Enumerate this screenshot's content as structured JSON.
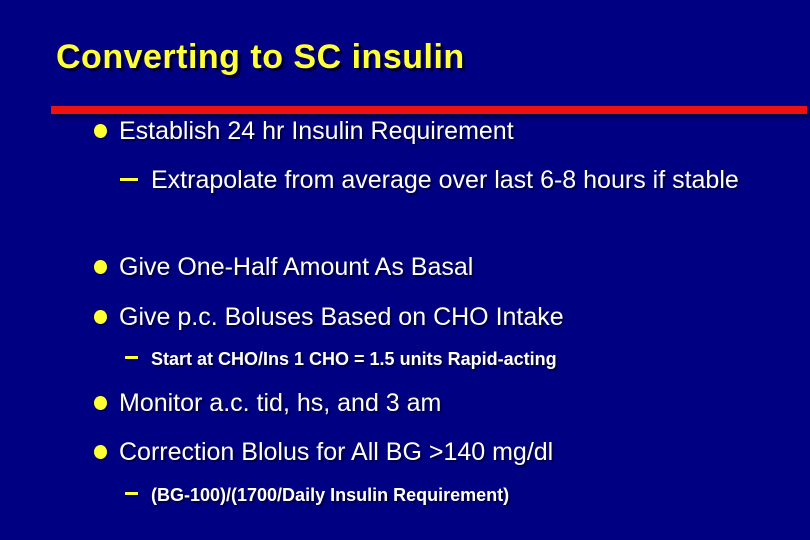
{
  "slide": {
    "title": "Converting to SC insulin",
    "bullets": [
      {
        "level": 1,
        "text": "Establish 24 hr Insulin Requirement"
      },
      {
        "level": 2,
        "text": "Extrapolate from average over last 6-8 hours if stable"
      },
      {
        "level": 1,
        "text": "Give One-Half Amount As Basal"
      },
      {
        "level": 1,
        "text": "Give p.c. Boluses Based on CHO Intake"
      },
      {
        "level": 2,
        "size": "small",
        "text": "Start at CHO/Ins 1 CHO = 1.5 units Rapid-acting"
      },
      {
        "level": 1,
        "text": "Monitor a.c. tid, hs, and 3 am"
      },
      {
        "level": 1,
        "text": "Correction Blolus for All BG >140 mg/dl"
      },
      {
        "level": 2,
        "size": "small",
        "text": "(BG-100)/(1700/Daily Insulin Requirement)"
      }
    ],
    "colors": {
      "background": "#000082",
      "title_text": "#FFFF3B",
      "accent_line": "#EE1111",
      "bullet_marker": "#FFFF33",
      "body_text": "#FFFFFF"
    }
  }
}
